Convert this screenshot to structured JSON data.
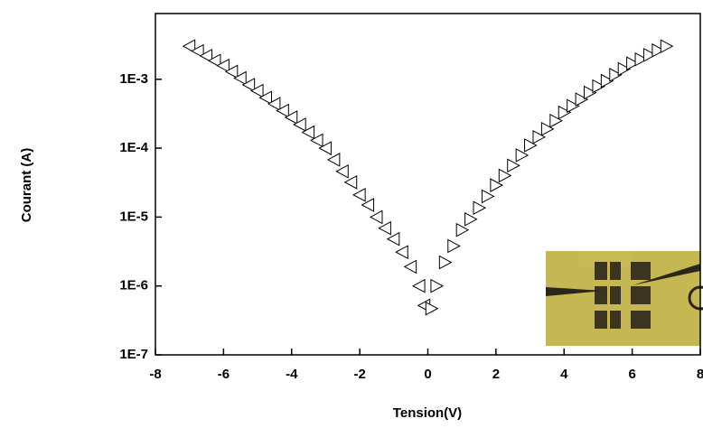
{
  "chart_data": {
    "type": "scatter",
    "x_label": "Tension(V)",
    "y_label": "Courant (A)",
    "xlim": [
      -8,
      8
    ],
    "xticks": [
      -8,
      -6,
      -4,
      -2,
      0,
      2,
      4,
      6,
      8
    ],
    "ylim": [
      1e-07,
      0.009
    ],
    "log_y": true,
    "yticks": [
      {
        "value": 1e-07,
        "label": "1E-7"
      },
      {
        "value": 1e-06,
        "label": "1E-6"
      },
      {
        "value": 1e-05,
        "label": "1E-5"
      },
      {
        "value": 0.0001,
        "label": "1E-4"
      },
      {
        "value": 0.001,
        "label": "1E-3"
      }
    ],
    "series": [
      {
        "color": "#000000",
        "marker": "triangle-left",
        "x": [
          -7,
          -6.75,
          -6.5,
          -6.25,
          -6,
          -5.75,
          -5.5,
          -5.25,
          -5,
          -4.75,
          -4.5,
          -4.25,
          -4,
          -3.75,
          -3.5,
          -3.25,
          -3,
          -2.75,
          -2.5,
          -2.25,
          -2,
          -1.75,
          -1.5,
          -1.25,
          -1,
          -0.75,
          -0.5,
          -0.25,
          -0.1
        ],
        "values": [
          0.00302,
          0.00257,
          0.00219,
          0.00186,
          0.00158,
          0.00129,
          0.00104,
          0.00083,
          0.00068,
          0.00054,
          0.00044,
          0.00035,
          0.00028,
          0.00022,
          0.00017,
          0.00013,
          0.0001,
          6.8e-05,
          4.6e-05,
          3.2e-05,
          2.1e-05,
          1.5e-05,
          1e-05,
          6.9e-06,
          4.8e-06,
          3.1e-06,
          1.9e-06,
          1e-06,
          5.2e-07
        ]
      },
      {
        "color": "#000000",
        "marker": "triangle-right",
        "x": [
          0.1,
          0.25,
          0.5,
          0.75,
          1,
          1.25,
          1.5,
          1.75,
          2,
          2.25,
          2.5,
          2.75,
          3,
          3.25,
          3.5,
          3.75,
          4,
          4.25,
          4.5,
          4.75,
          5,
          5.25,
          5.5,
          5.75,
          6,
          6.25,
          6.5,
          6.75,
          7
        ],
        "values": [
          4.7e-07,
          1e-06,
          2.2e-06,
          3.8e-06,
          6.5e-06,
          9.3e-06,
          1.36e-05,
          2e-05,
          2.9e-05,
          4e-05,
          5.6e-05,
          7.9e-05,
          0.00011,
          0.000145,
          0.00019,
          0.00025,
          0.00033,
          0.00041,
          0.00051,
          0.00064,
          0.00079,
          0.00095,
          0.00116,
          0.00141,
          0.0017,
          0.00195,
          0.00226,
          0.00263,
          0.00302
        ]
      }
    ]
  }
}
